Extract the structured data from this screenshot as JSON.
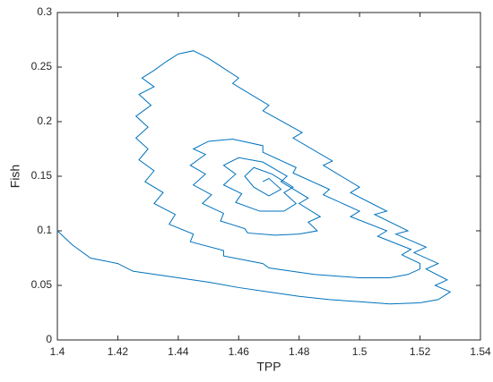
{
  "chart_data": {
    "type": "line",
    "x_label": "TPP",
    "y_label": "Fish",
    "xlim": [
      1.4,
      1.54
    ],
    "xticks": [
      1.4,
      1.42,
      1.44,
      1.46,
      1.48,
      1.5,
      1.52,
      1.54
    ],
    "ylim": [
      0,
      0.3
    ],
    "yticks": [
      0,
      0.05,
      0.1,
      0.15,
      0.2,
      0.25,
      0.3
    ],
    "series": [
      {
        "color": "#0072bd",
        "x": [
          1.4,
          1.405,
          1.411,
          1.42,
          1.425,
          1.44,
          1.45,
          1.46,
          1.47,
          1.48,
          1.49,
          1.5,
          1.51,
          1.52,
          1.526,
          1.53,
          1.525,
          1.529,
          1.522,
          1.526,
          1.518,
          1.522,
          1.512,
          1.516,
          1.505,
          1.509,
          1.497,
          1.5,
          1.488,
          1.491,
          1.478,
          1.481,
          1.468,
          1.47,
          1.458,
          1.46,
          1.45,
          1.445,
          1.44,
          1.436,
          1.432,
          1.428,
          1.432,
          1.427,
          1.431,
          1.426,
          1.43,
          1.426,
          1.43,
          1.427,
          1.432,
          1.429,
          1.435,
          1.432,
          1.439,
          1.437,
          1.445,
          1.444,
          1.455,
          1.455,
          1.468,
          1.47,
          1.485,
          1.5,
          1.51,
          1.516,
          1.52,
          1.52,
          1.514,
          1.517,
          1.506,
          1.509,
          1.497,
          1.5,
          1.488,
          1.49,
          1.478,
          1.479,
          1.468,
          1.468,
          1.458,
          1.45,
          1.445,
          1.449,
          1.444,
          1.449,
          1.445,
          1.451,
          1.448,
          1.455,
          1.454,
          1.462,
          1.463,
          1.472,
          1.48,
          1.486,
          1.483,
          1.487,
          1.48,
          1.483,
          1.474,
          1.476,
          1.468,
          1.46,
          1.455,
          1.459,
          1.455,
          1.461,
          1.459,
          1.467,
          1.475,
          1.479,
          1.475,
          1.478,
          1.471,
          1.465,
          1.462,
          1.465,
          1.47,
          1.474,
          1.47,
          1.468
        ],
        "values": [
          0.1,
          0.087,
          0.075,
          0.07,
          0.063,
          0.057,
          0.053,
          0.048,
          0.044,
          0.04,
          0.037,
          0.035,
          0.033,
          0.034,
          0.037,
          0.044,
          0.05,
          0.055,
          0.065,
          0.07,
          0.08,
          0.085,
          0.097,
          0.1,
          0.115,
          0.118,
          0.135,
          0.14,
          0.16,
          0.164,
          0.185,
          0.19,
          0.21,
          0.215,
          0.235,
          0.24,
          0.258,
          0.265,
          0.262,
          0.255,
          0.247,
          0.24,
          0.232,
          0.225,
          0.215,
          0.205,
          0.195,
          0.185,
          0.175,
          0.165,
          0.155,
          0.145,
          0.135,
          0.125,
          0.115,
          0.106,
          0.097,
          0.09,
          0.082,
          0.077,
          0.07,
          0.066,
          0.06,
          0.057,
          0.057,
          0.06,
          0.065,
          0.07,
          0.078,
          0.083,
          0.095,
          0.1,
          0.113,
          0.118,
          0.133,
          0.138,
          0.153,
          0.158,
          0.172,
          0.178,
          0.184,
          0.182,
          0.175,
          0.17,
          0.16,
          0.152,
          0.142,
          0.133,
          0.125,
          0.116,
          0.109,
          0.102,
          0.098,
          0.096,
          0.097,
          0.1,
          0.108,
          0.113,
          0.125,
          0.13,
          0.145,
          0.15,
          0.163,
          0.167,
          0.16,
          0.152,
          0.142,
          0.134,
          0.126,
          0.118,
          0.118,
          0.125,
          0.135,
          0.14,
          0.152,
          0.158,
          0.15,
          0.14,
          0.132,
          0.138,
          0.148,
          0.145
        ]
      }
    ]
  }
}
